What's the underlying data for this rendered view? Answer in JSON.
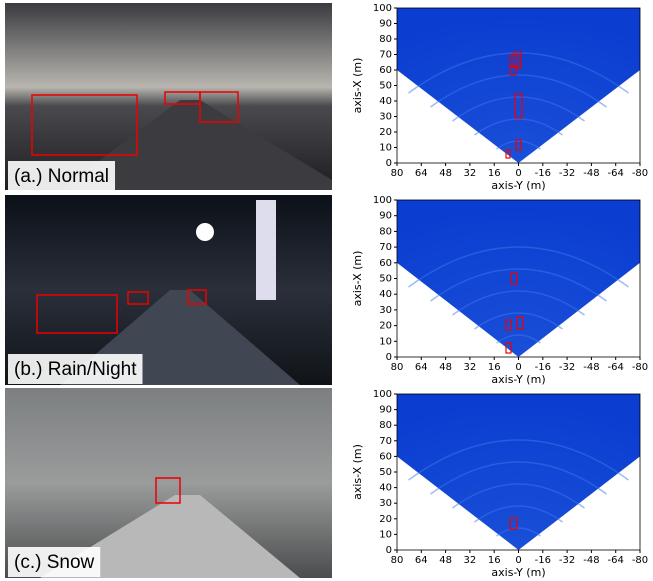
{
  "panels": [
    {
      "label": "(a.) Normal"
    },
    {
      "label": "(b.) Rain/Night"
    },
    {
      "label": "(c.) Snow"
    }
  ],
  "plot": {
    "xlabel": "axis-Y (m)",
    "ylabel": "axis-X (m)",
    "xticks": [
      80,
      64,
      48,
      32,
      16,
      0,
      -16,
      -32,
      -48,
      -64,
      -80
    ],
    "yticks": [
      0,
      10,
      20,
      30,
      40,
      50,
      60,
      70,
      80,
      90,
      100
    ]
  }
}
